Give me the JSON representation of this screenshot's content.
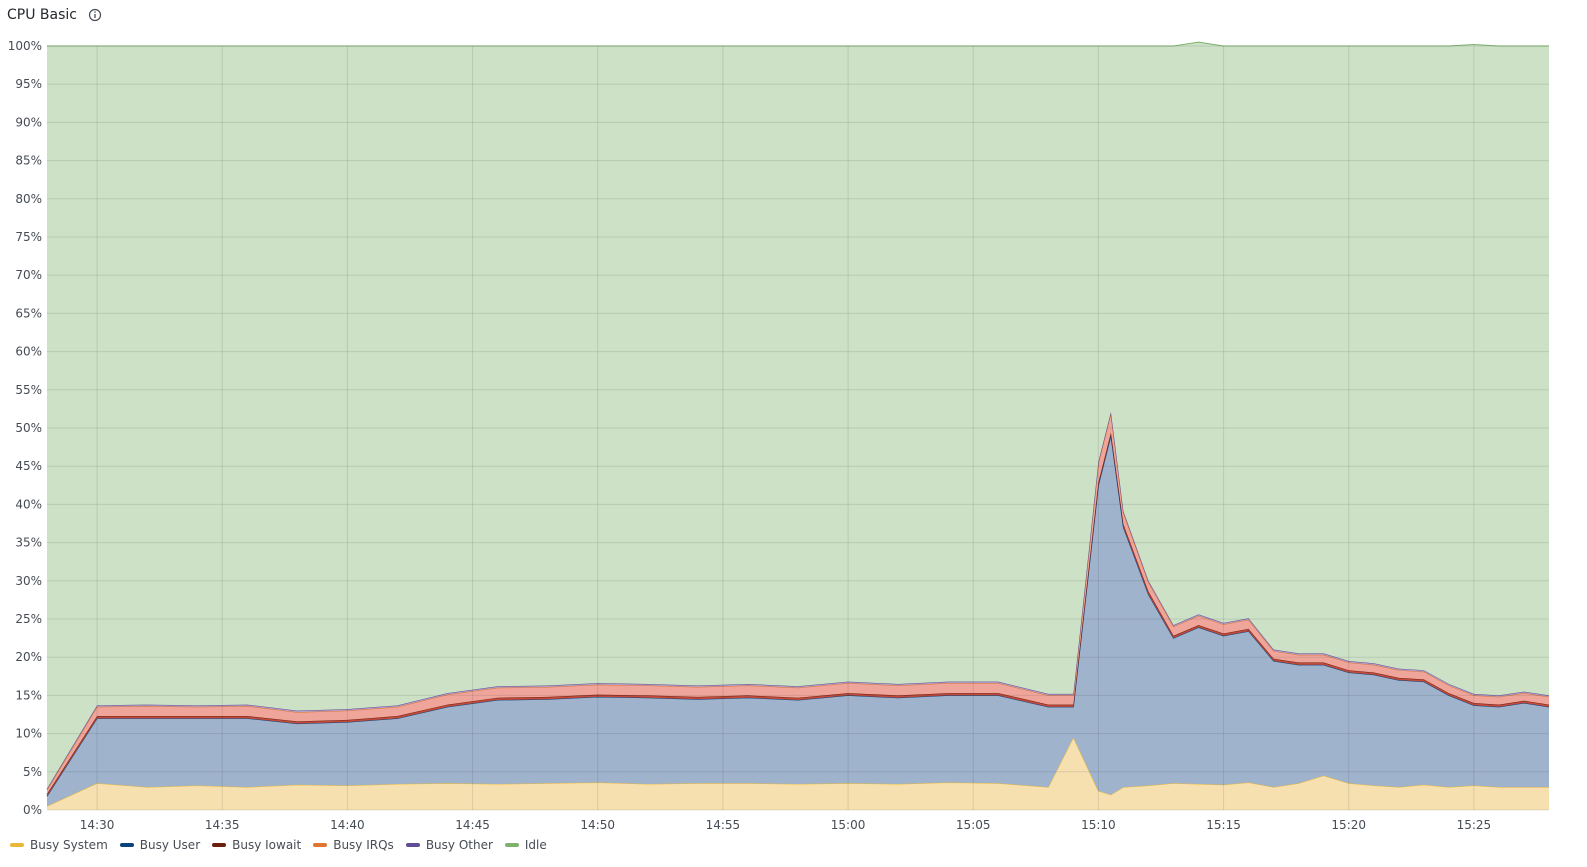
{
  "panel": {
    "title": "CPU Basic",
    "info_icon": "info-circle-icon"
  },
  "chart_data": {
    "type": "area",
    "stacked": true,
    "x": [
      "14:28",
      "14:30",
      "14:32",
      "14:34",
      "14:36",
      "14:38",
      "14:40",
      "14:42",
      "14:44",
      "14:46",
      "14:48",
      "14:50",
      "14:52",
      "14:54",
      "14:56",
      "14:58",
      "15:00",
      "15:02",
      "15:04",
      "15:06",
      "15:08",
      "15:09",
      "15:10",
      "15:10:30",
      "15:11",
      "15:12",
      "15:13",
      "15:14",
      "15:15",
      "15:16",
      "15:17",
      "15:18",
      "15:19",
      "15:20",
      "15:21",
      "15:22",
      "15:23",
      "15:24",
      "15:25",
      "15:26",
      "15:27",
      "15:28"
    ],
    "x_ticks": [
      "14:30",
      "14:35",
      "14:40",
      "14:45",
      "14:50",
      "14:55",
      "15:00",
      "15:05",
      "15:10",
      "15:15",
      "15:20",
      "15:25"
    ],
    "y_ticks": [
      "0%",
      "5%",
      "10%",
      "15%",
      "20%",
      "25%",
      "30%",
      "35%",
      "40%",
      "45%",
      "50%",
      "55%",
      "60%",
      "65%",
      "70%",
      "75%",
      "80%",
      "85%",
      "90%",
      "95%",
      "100%"
    ],
    "ylim": [
      0,
      100
    ],
    "grid": true,
    "legend_position": "bottom-left",
    "series": [
      {
        "name": "Busy System",
        "color": "#EAB839",
        "fill": "#f6e0b0",
        "values": [
          0.5,
          3.5,
          3.0,
          3.2,
          3.0,
          3.3,
          3.2,
          3.4,
          3.5,
          3.4,
          3.5,
          3.6,
          3.4,
          3.5,
          3.5,
          3.4,
          3.5,
          3.4,
          3.6,
          3.5,
          3.0,
          9.5,
          2.5,
          2.0,
          3.0,
          3.2,
          3.5,
          3.4,
          3.3,
          3.6,
          3.0,
          3.5,
          4.5,
          3.5,
          3.2,
          3.0,
          3.3,
          3.0,
          3.2,
          3.0,
          3.0,
          3.0
        ]
      },
      {
        "name": "Busy User",
        "color": "#0A437C",
        "fill": "#9fb3cc",
        "values": [
          1.3,
          8.5,
          9.0,
          8.8,
          9.0,
          8.0,
          8.3,
          8.6,
          10.0,
          11.0,
          11.0,
          11.2,
          11.3,
          11.0,
          11.2,
          11.0,
          11.5,
          11.3,
          11.4,
          11.5,
          10.5,
          4.0,
          40.0,
          47.0,
          34.0,
          25.0,
          19.0,
          20.5,
          19.5,
          19.8,
          16.5,
          15.5,
          14.5,
          14.5,
          14.5,
          14.0,
          13.5,
          12.0,
          10.5,
          10.5,
          11.0,
          10.5
        ]
      },
      {
        "name": "Busy Iowait",
        "color": "#6D1F0F",
        "fill": "#c24a3a",
        "values": [
          0.3,
          0.3,
          0.3,
          0.3,
          0.3,
          0.3,
          0.3,
          0.3,
          0.3,
          0.3,
          0.3,
          0.3,
          0.3,
          0.3,
          0.3,
          0.3,
          0.3,
          0.3,
          0.3,
          0.3,
          0.3,
          0.3,
          0.4,
          0.4,
          0.4,
          0.4,
          0.3,
          0.3,
          0.3,
          0.3,
          0.3,
          0.3,
          0.3,
          0.3,
          0.3,
          0.3,
          0.3,
          0.3,
          0.3,
          0.3,
          0.3,
          0.3
        ]
      },
      {
        "name": "Busy IRQs",
        "color": "#E0752D",
        "fill": "#f0a59a",
        "values": [
          0.5,
          1.2,
          1.3,
          1.2,
          1.3,
          1.2,
          1.2,
          1.2,
          1.3,
          1.3,
          1.3,
          1.3,
          1.3,
          1.3,
          1.3,
          1.3,
          1.3,
          1.3,
          1.3,
          1.3,
          1.2,
          1.2,
          2.5,
          2.5,
          1.5,
          1.2,
          1.2,
          1.2,
          1.2,
          1.2,
          1.0,
          1.0,
          1.0,
          1.0,
          1.0,
          1.0,
          1.0,
          1.0,
          1.0,
          1.0,
          1.0,
          1.0
        ]
      },
      {
        "name": "Busy Other",
        "color": "#614D93",
        "fill": "#b59fc7",
        "values": [
          0.2,
          0.2,
          0.2,
          0.2,
          0.2,
          0.2,
          0.2,
          0.2,
          0.2,
          0.2,
          0.2,
          0.2,
          0.2,
          0.2,
          0.2,
          0.2,
          0.2,
          0.2,
          0.2,
          0.2,
          0.2,
          0.2,
          0.2,
          0.2,
          0.2,
          0.2,
          0.2,
          0.2,
          0.2,
          0.2,
          0.2,
          0.2,
          0.2,
          0.2,
          0.2,
          0.2,
          0.2,
          0.2,
          0.2,
          0.2,
          0.2,
          0.2
        ]
      },
      {
        "name": "Idle",
        "color": "#7EB26D",
        "fill": "#cde1c6",
        "values": [
          97.2,
          86.3,
          86.2,
          86.3,
          86.2,
          87.0,
          86.8,
          86.3,
          84.7,
          83.8,
          83.7,
          83.4,
          83.5,
          83.7,
          83.5,
          83.8,
          83.2,
          83.5,
          83.2,
          83.2,
          84.8,
          84.8,
          54.4,
          47.9,
          60.9,
          70.0,
          75.8,
          74.9,
          75.5,
          74.9,
          79.0,
          79.5,
          79.5,
          80.5,
          80.8,
          81.5,
          81.7,
          83.5,
          85.0,
          85.0,
          84.5,
          85.0
        ]
      }
    ]
  }
}
